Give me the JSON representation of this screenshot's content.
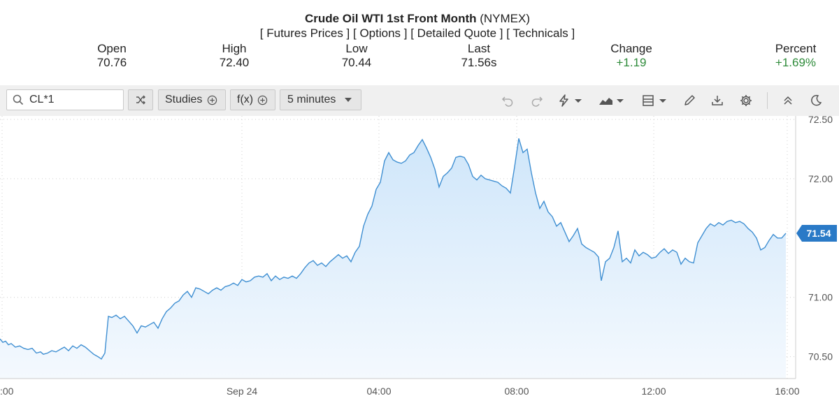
{
  "header": {
    "title_bold": "Crude Oil WTI 1st Front Month",
    "title_rest": "(NYMEX)",
    "links": [
      "Futures Prices",
      "Options",
      "Detailed Quote",
      "Technicals"
    ]
  },
  "stats": [
    {
      "label": "Open",
      "value": "70.76"
    },
    {
      "label": "High",
      "value": "72.40"
    },
    {
      "label": "Low",
      "value": "70.44"
    },
    {
      "label": "Last",
      "value": "71.56s"
    },
    {
      "label": "Change",
      "value": "+1.19"
    },
    {
      "label": "Percent",
      "value": "+1.69%"
    }
  ],
  "toolbar": {
    "symbol": "CL*1",
    "studies_label": "Studies",
    "fx_label": "f(x)",
    "interval_label": "5 minutes"
  },
  "colors": {
    "line": "#3f8fd2",
    "fill": "#d9ecfb",
    "accent": "#2a7ac7",
    "positive": "#2e8b3a"
  },
  "chart_data": {
    "type": "area",
    "y_ticks": [
      "72.50",
      "72.00",
      "71.00",
      "70.50"
    ],
    "ylim": [
      70.38,
      72.5
    ],
    "x_ticks": [
      ":00",
      "Sep 24",
      "04:00",
      "08:00",
      "12:00",
      "16:00"
    ],
    "last_value_label": "71.54",
    "grid": true,
    "points": [
      [
        0,
        70.65
      ],
      [
        4,
        70.62
      ],
      [
        8,
        70.63
      ],
      [
        12,
        70.6
      ],
      [
        16,
        70.61
      ],
      [
        22,
        70.58
      ],
      [
        28,
        70.59
      ],
      [
        34,
        70.57
      ],
      [
        40,
        70.56
      ],
      [
        46,
        70.57
      ],
      [
        52,
        70.53
      ],
      [
        58,
        70.54
      ],
      [
        62,
        70.52
      ],
      [
        68,
        70.53
      ],
      [
        74,
        70.55
      ],
      [
        80,
        70.54
      ],
      [
        86,
        70.56
      ],
      [
        92,
        70.58
      ],
      [
        98,
        70.55
      ],
      [
        104,
        70.59
      ],
      [
        110,
        70.57
      ],
      [
        116,
        70.6
      ],
      [
        122,
        70.58
      ],
      [
        128,
        70.55
      ],
      [
        134,
        70.52
      ],
      [
        140,
        70.5
      ],
      [
        145,
        70.48
      ],
      [
        150,
        70.53
      ],
      [
        155,
        70.84
      ],
      [
        160,
        70.83
      ],
      [
        166,
        70.85
      ],
      [
        172,
        70.82
      ],
      [
        178,
        70.84
      ],
      [
        184,
        70.8
      ],
      [
        190,
        70.76
      ],
      [
        196,
        70.7
      ],
      [
        202,
        70.76
      ],
      [
        208,
        70.75
      ],
      [
        214,
        70.77
      ],
      [
        220,
        70.79
      ],
      [
        226,
        70.74
      ],
      [
        232,
        70.82
      ],
      [
        238,
        70.88
      ],
      [
        244,
        70.91
      ],
      [
        250,
        70.95
      ],
      [
        256,
        70.97
      ],
      [
        262,
        71.02
      ],
      [
        268,
        71.05
      ],
      [
        274,
        71.0
      ],
      [
        280,
        71.08
      ],
      [
        286,
        71.07
      ],
      [
        292,
        71.05
      ],
      [
        298,
        71.03
      ],
      [
        304,
        71.06
      ],
      [
        310,
        71.08
      ],
      [
        316,
        71.06
      ],
      [
        322,
        71.09
      ],
      [
        328,
        71.1
      ],
      [
        334,
        71.12
      ],
      [
        340,
        71.1
      ],
      [
        346,
        71.15
      ],
      [
        352,
        71.13
      ],
      [
        358,
        71.14
      ],
      [
        364,
        71.17
      ],
      [
        370,
        71.18
      ],
      [
        376,
        71.17
      ],
      [
        382,
        71.2
      ],
      [
        388,
        71.14
      ],
      [
        394,
        71.18
      ],
      [
        400,
        71.15
      ],
      [
        406,
        71.17
      ],
      [
        412,
        71.16
      ],
      [
        418,
        71.18
      ],
      [
        424,
        71.16
      ],
      [
        430,
        71.2
      ],
      [
        436,
        71.25
      ],
      [
        442,
        71.29
      ],
      [
        448,
        71.31
      ],
      [
        454,
        71.27
      ],
      [
        460,
        71.29
      ],
      [
        466,
        71.26
      ],
      [
        472,
        71.3
      ],
      [
        478,
        71.33
      ],
      [
        484,
        71.36
      ],
      [
        490,
        71.33
      ],
      [
        496,
        71.35
      ],
      [
        502,
        71.3
      ],
      [
        508,
        71.38
      ],
      [
        514,
        71.43
      ],
      [
        520,
        71.6
      ],
      [
        526,
        71.7
      ],
      [
        532,
        71.77
      ],
      [
        538,
        71.91
      ],
      [
        544,
        71.97
      ],
      [
        550,
        72.15
      ],
      [
        556,
        72.22
      ],
      [
        562,
        72.16
      ],
      [
        568,
        72.14
      ],
      [
        574,
        72.13
      ],
      [
        580,
        72.15
      ],
      [
        586,
        72.2
      ],
      [
        592,
        72.22
      ],
      [
        598,
        72.28
      ],
      [
        604,
        72.33
      ],
      [
        610,
        72.26
      ],
      [
        616,
        72.18
      ],
      [
        622,
        72.08
      ],
      [
        628,
        71.93
      ],
      [
        634,
        72.02
      ],
      [
        640,
        72.05
      ],
      [
        646,
        72.09
      ],
      [
        652,
        72.18
      ],
      [
        658,
        72.19
      ],
      [
        664,
        72.18
      ],
      [
        670,
        72.12
      ],
      [
        676,
        72.02
      ],
      [
        682,
        71.99
      ],
      [
        688,
        72.03
      ],
      [
        694,
        72.0
      ],
      [
        700,
        71.99
      ],
      [
        706,
        71.98
      ],
      [
        712,
        71.97
      ],
      [
        718,
        71.94
      ],
      [
        724,
        71.92
      ],
      [
        730,
        71.88
      ],
      [
        736,
        72.1
      ],
      [
        742,
        72.34
      ],
      [
        748,
        72.22
      ],
      [
        754,
        72.25
      ],
      [
        760,
        72.05
      ],
      [
        766,
        71.88
      ],
      [
        772,
        71.75
      ],
      [
        778,
        71.81
      ],
      [
        784,
        71.72
      ],
      [
        790,
        71.68
      ],
      [
        796,
        71.6
      ],
      [
        802,
        71.63
      ],
      [
        808,
        71.55
      ],
      [
        814,
        71.47
      ],
      [
        820,
        71.52
      ],
      [
        826,
        71.58
      ],
      [
        832,
        71.45
      ],
      [
        838,
        71.42
      ],
      [
        844,
        71.4
      ],
      [
        850,
        71.38
      ],
      [
        856,
        71.34
      ],
      [
        860,
        71.14
      ],
      [
        866,
        71.3
      ],
      [
        872,
        71.33
      ],
      [
        878,
        71.42
      ],
      [
        884,
        71.56
      ],
      [
        890,
        71.3
      ],
      [
        896,
        71.33
      ],
      [
        902,
        71.29
      ],
      [
        908,
        71.4
      ],
      [
        914,
        71.35
      ],
      [
        920,
        71.38
      ],
      [
        926,
        71.36
      ],
      [
        932,
        71.33
      ],
      [
        938,
        71.34
      ],
      [
        944,
        71.38
      ],
      [
        950,
        71.41
      ],
      [
        956,
        71.37
      ],
      [
        962,
        71.4
      ],
      [
        968,
        71.38
      ],
      [
        974,
        71.28
      ],
      [
        980,
        71.33
      ],
      [
        986,
        71.3
      ],
      [
        992,
        71.29
      ],
      [
        998,
        71.46
      ],
      [
        1004,
        71.52
      ],
      [
        1010,
        71.58
      ],
      [
        1016,
        71.62
      ],
      [
        1022,
        71.6
      ],
      [
        1028,
        71.63
      ],
      [
        1034,
        71.61
      ],
      [
        1040,
        71.64
      ],
      [
        1046,
        71.65
      ],
      [
        1052,
        71.63
      ],
      [
        1058,
        71.64
      ],
      [
        1064,
        71.62
      ],
      [
        1070,
        71.58
      ],
      [
        1076,
        71.55
      ],
      [
        1082,
        71.5
      ],
      [
        1088,
        71.4
      ],
      [
        1094,
        71.42
      ],
      [
        1100,
        71.48
      ],
      [
        1106,
        71.53
      ],
      [
        1112,
        71.5
      ],
      [
        1118,
        71.5
      ],
      [
        1124,
        71.54
      ]
    ]
  }
}
